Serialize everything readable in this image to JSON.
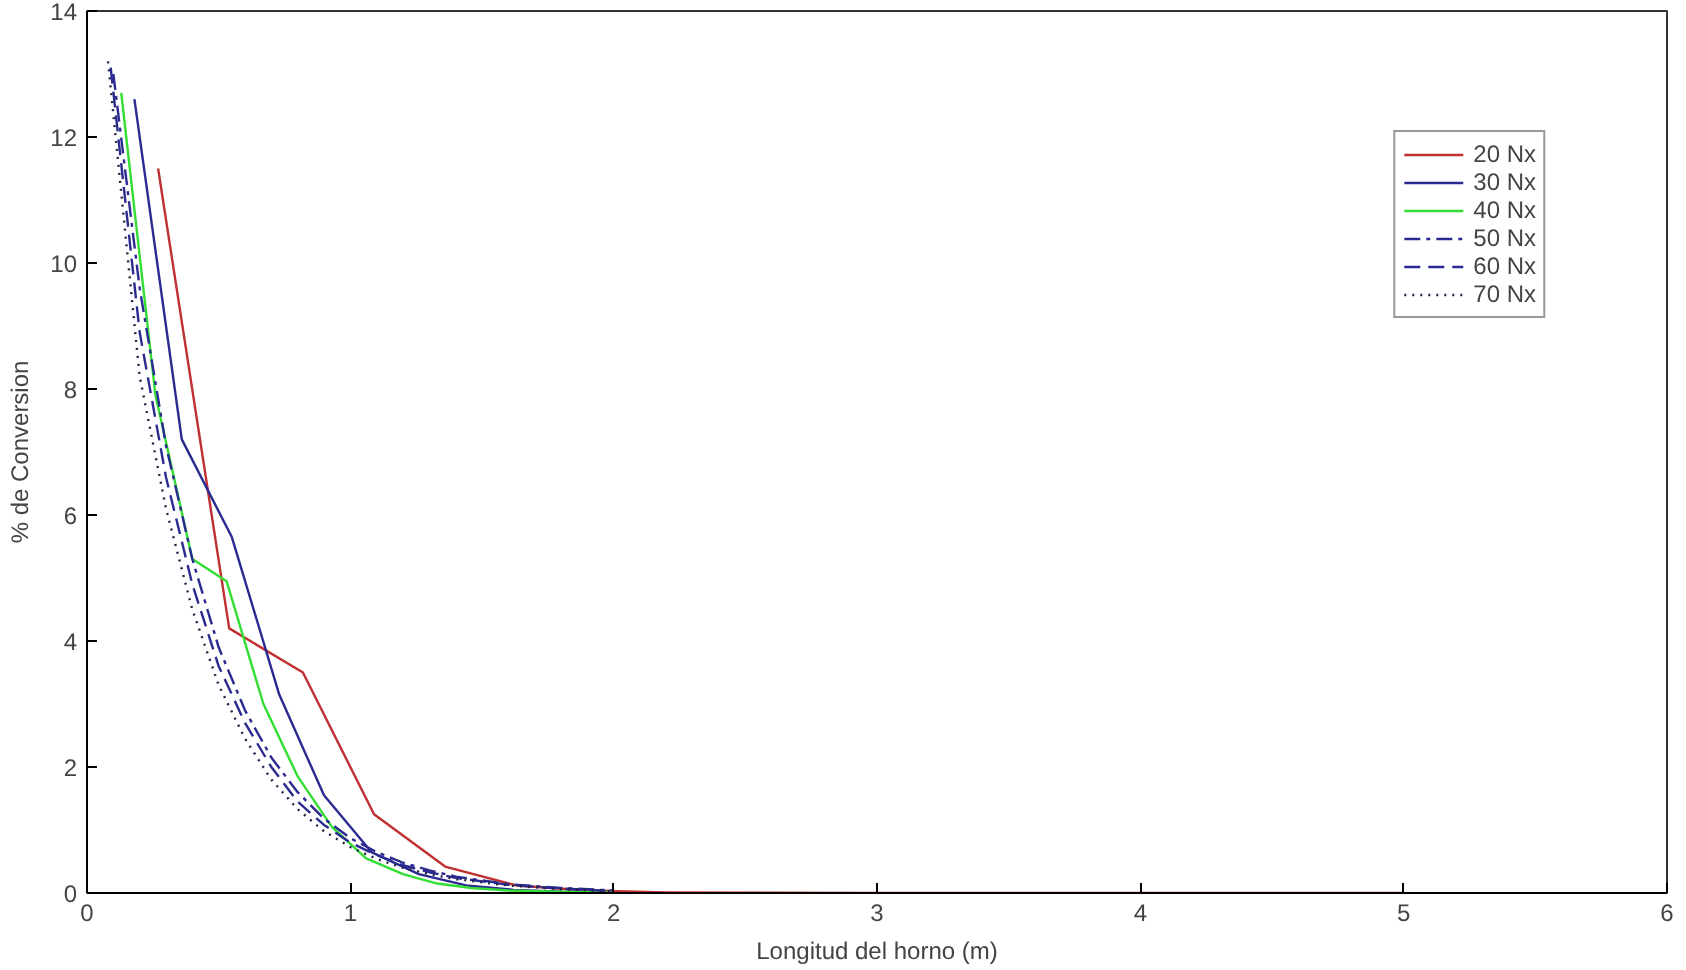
{
  "chart_data": {
    "type": "line",
    "xlabel": "Longitud del horno (m)",
    "ylabel": "% de Conversion",
    "xlim": [
      0,
      6
    ],
    "xticks": [
      0,
      1,
      2,
      3,
      4,
      5,
      6
    ],
    "ylim": [
      0,
      14
    ],
    "yticks": [
      0,
      2,
      4,
      6,
      8,
      10,
      12,
      14
    ],
    "grid": false,
    "legend": "top right",
    "marker": "none",
    "series": [
      {
        "name": "20 Nx",
        "color": "#c03030",
        "line_style": "solid",
        "x": [
          0.27,
          0.54,
          0.82,
          1.09,
          1.36,
          1.63,
          1.9,
          2.2,
          3.0,
          4.0,
          5.0
        ],
        "values": [
          11.5,
          4.2,
          3.5,
          1.25,
          0.42,
          0.12,
          0.04,
          0.01,
          0,
          0,
          0
        ]
      },
      {
        "name": "30 Nx",
        "color": "#2a2a90",
        "line_style": "solid",
        "x": [
          0.18,
          0.36,
          0.55,
          0.73,
          0.9,
          1.08,
          1.26,
          1.44,
          1.62,
          1.8,
          2.0
        ],
        "values": [
          12.6,
          7.2,
          5.65,
          3.15,
          1.55,
          0.65,
          0.3,
          0.12,
          0.05,
          0.02,
          0.01
        ]
      },
      {
        "name": "40 Nx",
        "color": "#33dd33",
        "line_style": "solid",
        "x": [
          0.13,
          0.26,
          0.4,
          0.53,
          0.67,
          0.8,
          0.93,
          1.06,
          1.2,
          1.33,
          1.46,
          1.6,
          1.8,
          2.0
        ],
        "values": [
          12.7,
          7.9,
          5.3,
          4.95,
          3.0,
          1.85,
          1.05,
          0.55,
          0.3,
          0.15,
          0.08,
          0.04,
          0.02,
          0.01
        ]
      },
      {
        "name": "50 Nx",
        "color": "#2a2a90",
        "line_style": "dashdot",
        "x": [
          0.1,
          0.2,
          0.3,
          0.4,
          0.5,
          0.6,
          0.7,
          0.8,
          0.9,
          1.0,
          1.1,
          1.2,
          1.3,
          1.4,
          1.6,
          1.8,
          2.0
        ],
        "values": [
          13.0,
          9.6,
          7.1,
          5.3,
          3.9,
          2.9,
          2.15,
          1.6,
          1.18,
          0.87,
          0.65,
          0.48,
          0.36,
          0.26,
          0.14,
          0.08,
          0.04
        ]
      },
      {
        "name": "60 Nx",
        "color": "#2a2a90",
        "line_style": "dashed",
        "x": [
          0.09,
          0.2,
          0.3,
          0.4,
          0.5,
          0.6,
          0.7,
          0.8,
          0.9,
          1.0,
          1.1,
          1.2,
          1.3,
          1.4,
          1.6,
          1.8,
          2.0
        ],
        "values": [
          13.1,
          8.9,
          6.6,
          4.9,
          3.6,
          2.7,
          2.0,
          1.45,
          1.08,
          0.8,
          0.6,
          0.44,
          0.33,
          0.24,
          0.13,
          0.07,
          0.03
        ]
      },
      {
        "name": "70 Nx",
        "color": "#222244",
        "line_style": "dotted",
        "x": [
          0.08,
          0.2,
          0.3,
          0.4,
          0.5,
          0.6,
          0.7,
          0.8,
          0.9,
          1.0,
          1.1,
          1.2,
          1.3,
          1.4,
          1.6,
          1.8,
          2.0
        ],
        "values": [
          13.2,
          8.2,
          6.1,
          4.5,
          3.3,
          2.45,
          1.8,
          1.33,
          0.98,
          0.73,
          0.54,
          0.4,
          0.3,
          0.22,
          0.12,
          0.06,
          0.03
        ]
      }
    ]
  }
}
